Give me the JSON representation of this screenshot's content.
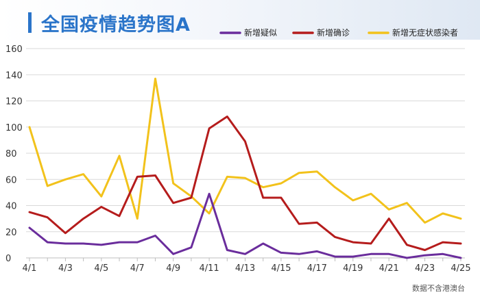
{
  "title": "全国疫情趋势图A",
  "footnote": "数据不含港澳台",
  "colors": {
    "title": "#2a74c9",
    "series": [
      "#6a2d9c",
      "#b51c1c",
      "#f2c21b"
    ],
    "grid": "#d9d9d9"
  },
  "chart_data": {
    "type": "line",
    "title": "全国疫情趋势图A",
    "xlabel": "",
    "ylabel": "",
    "ylim": [
      0,
      160
    ],
    "yticks": [
      0,
      20,
      40,
      60,
      80,
      100,
      120,
      140,
      160
    ],
    "grid": true,
    "legend_position": "top-right",
    "x": [
      "4/1",
      "4/2",
      "4/3",
      "4/4",
      "4/5",
      "4/6",
      "4/7",
      "4/8",
      "4/9",
      "4/10",
      "4/11",
      "4/12",
      "4/13",
      "4/14",
      "4/15",
      "4/16",
      "4/17",
      "4/18",
      "4/19",
      "4/20",
      "4/21",
      "4/22",
      "4/23",
      "4/24",
      "4/25"
    ],
    "x_tick_labels": [
      "4/1",
      "4/3",
      "4/5",
      "4/7",
      "4/9",
      "4/11",
      "4/13",
      "4/15",
      "4/17",
      "4/19",
      "4/21",
      "4/23",
      "4/25"
    ],
    "series": [
      {
        "name": "新增疑似",
        "color": "#6a2d9c",
        "values": [
          23,
          12,
          11,
          11,
          10,
          12,
          12,
          17,
          3,
          8,
          49,
          6,
          3,
          11,
          4,
          3,
          5,
          1,
          1,
          3,
          3,
          0,
          2,
          3,
          0
        ]
      },
      {
        "name": "新增确诊",
        "color": "#b51c1c",
        "values": [
          35,
          31,
          19,
          30,
          39,
          32,
          62,
          63,
          42,
          46,
          99,
          108,
          89,
          46,
          46,
          26,
          27,
          16,
          12,
          11,
          30,
          10,
          6,
          12,
          11
        ]
      },
      {
        "name": "新增无症状感染者",
        "color": "#f2c21b",
        "values": [
          100,
          55,
          60,
          64,
          47,
          78,
          30,
          137,
          57,
          47,
          34,
          62,
          61,
          54,
          57,
          65,
          66,
          54,
          44,
          49,
          37,
          42,
          27,
          34,
          30
        ]
      }
    ]
  }
}
